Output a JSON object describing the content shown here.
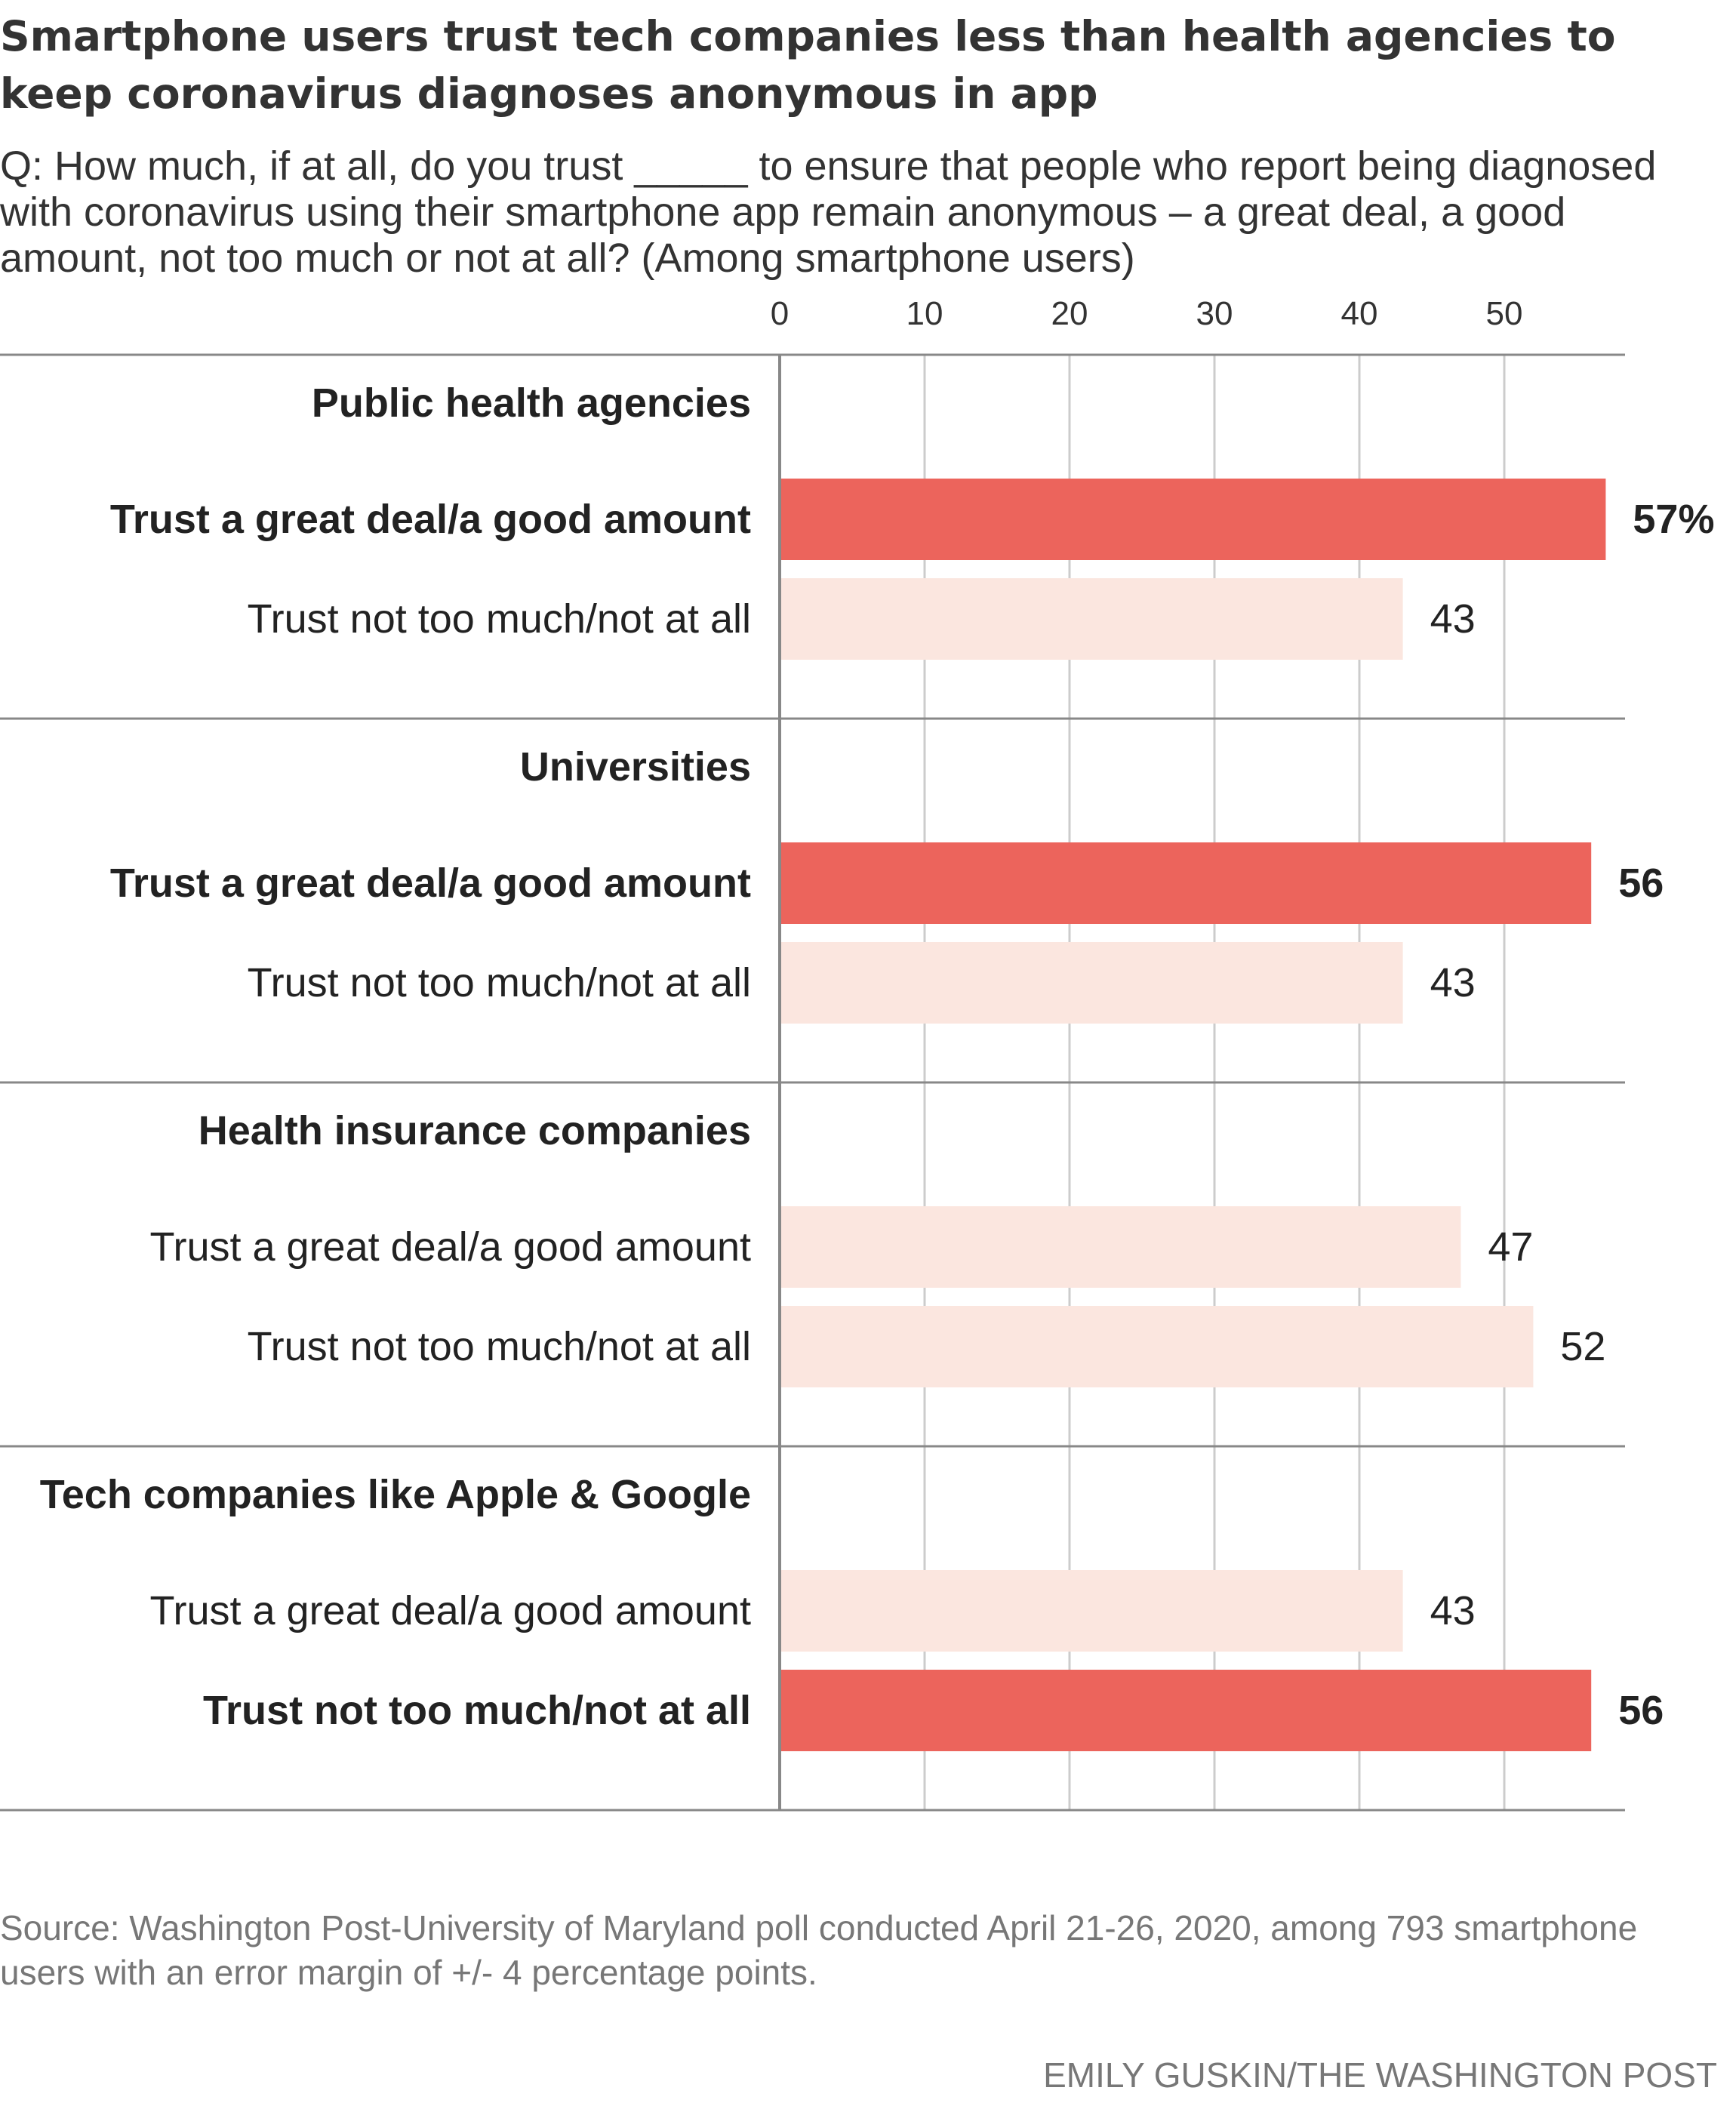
{
  "chart_data": {
    "type": "bar",
    "orientation": "horizontal",
    "title": "Smartphone users trust tech companies less than health agencies to keep coronavirus diagnoses anonymous in app",
    "subtitle": "Q: How much, if at all, do you trust _____ to ensure that people who report being diagnosed with coronavirus using their smartphone app remain anonymous – a great deal, a good amount, not too much or not at all? (Among smartphone users)",
    "x_ticks": [
      0,
      10,
      20,
      30,
      40,
      50
    ],
    "xlim": [
      0,
      58
    ],
    "grid": true,
    "groups": [
      {
        "name": "Public health agencies",
        "bars": [
          {
            "label": "Trust a great deal/a good amount",
            "value": 57,
            "value_label": "57%",
            "highlight": true
          },
          {
            "label": "Trust not too much/not at all",
            "value": 43,
            "value_label": "43",
            "highlight": false
          }
        ]
      },
      {
        "name": "Universities",
        "bars": [
          {
            "label": "Trust a great deal/a good amount",
            "value": 56,
            "value_label": "56",
            "highlight": true
          },
          {
            "label": "Trust not too much/not at all",
            "value": 43,
            "value_label": "43",
            "highlight": false
          }
        ]
      },
      {
        "name": "Health insurance companies",
        "bars": [
          {
            "label": "Trust a great deal/a good amount",
            "value": 47,
            "value_label": "47",
            "highlight": false
          },
          {
            "label": "Trust not too much/not at all",
            "value": 52,
            "value_label": "52",
            "highlight": false
          }
        ]
      },
      {
        "name": "Tech companies like Apple & Google",
        "bars": [
          {
            "label": "Trust a great deal/a good amount",
            "value": 43,
            "value_label": "43",
            "highlight": false
          },
          {
            "label": "Trust not too much/not at all",
            "value": 56,
            "value_label": "56",
            "highlight": true
          }
        ]
      }
    ],
    "colors": {
      "highlight": "#ec645c",
      "muted": "#fbe6df",
      "grid": "#cccccc",
      "axis": "#888888"
    }
  },
  "footer": {
    "source": "Source: Washington Post-University of Maryland poll conducted April 21-26, 2020, among 793 smartphone users with an error margin of +/- 4 percentage points.",
    "credit": "EMILY GUSKIN/THE WASHINGTON POST"
  }
}
